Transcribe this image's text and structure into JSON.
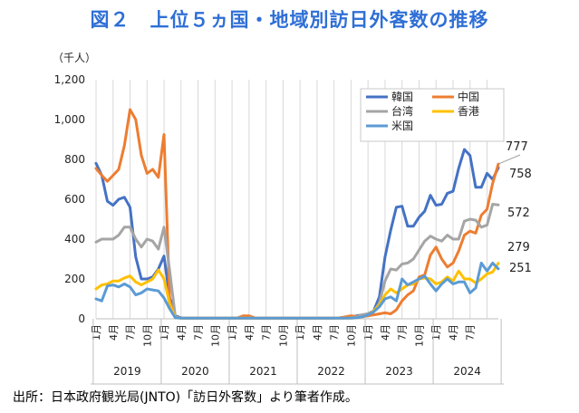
{
  "title": "図２　上位５ヵ国・地域別訪日外客数の推移",
  "source": "出所：日本政府観光局(JNTO)「訪日外客数」より筆者作成。",
  "chart_data": {
    "type": "line",
    "ylabel": "（千人）",
    "ylim": [
      0,
      1200
    ],
    "yticks": [
      "0",
      "200",
      "400",
      "600",
      "800",
      "1,000",
      "1,200"
    ],
    "ytick_values": [
      0,
      200,
      400,
      600,
      800,
      1000,
      1200
    ],
    "grid": "vertical",
    "legend_position": "top-right",
    "month_tick_labels": [
      "1月",
      "4月",
      "7月",
      "10月",
      "1月",
      "4月",
      "7月",
      "10月",
      "1月",
      "4月",
      "7月",
      "10月",
      "1月",
      "4月",
      "7月",
      "10月",
      "1月",
      "4月",
      "7月",
      "10月",
      "1月",
      "4月",
      "7月"
    ],
    "year_labels": [
      "2019",
      "2020",
      "2021",
      "2022",
      "2023",
      "2024"
    ],
    "x_start": "2019-01",
    "x_end": "2024-07",
    "end_labels": [
      {
        "text": "777",
        "series": "中国"
      },
      {
        "text": "758",
        "series": "韓国"
      },
      {
        "text": "572",
        "series": "台湾"
      },
      {
        "text": "279",
        "series": "香港"
      },
      {
        "text": "251",
        "series": "米国"
      }
    ],
    "series": [
      {
        "name": "韓国",
        "color": "#4472c4",
        "values": [
          780,
          720,
          590,
          570,
          600,
          610,
          560,
          310,
          200,
          200,
          210,
          250,
          315,
          105,
          15,
          5,
          3,
          3,
          3,
          3,
          3,
          3,
          3,
          3,
          3,
          3,
          3,
          3,
          3,
          3,
          3,
          3,
          3,
          3,
          3,
          3,
          3,
          3,
          3,
          3,
          3,
          3,
          3,
          5,
          8,
          10,
          15,
          20,
          25,
          40,
          110,
          310,
          445,
          560,
          565,
          465,
          465,
          510,
          540,
          620,
          570,
          575,
          630,
          640,
          755,
          850,
          820,
          660,
          660,
          730,
          700,
          758
        ]
      },
      {
        "name": "中国",
        "color": "#ed7d31",
        "values": [
          755,
          720,
          690,
          720,
          750,
          870,
          1050,
          1000,
          820,
          730,
          750,
          710,
          925,
          90,
          10,
          3,
          3,
          3,
          3,
          3,
          3,
          3,
          3,
          3,
          3,
          5,
          15,
          15,
          5,
          3,
          3,
          3,
          3,
          3,
          3,
          3,
          3,
          3,
          3,
          3,
          3,
          3,
          3,
          5,
          10,
          15,
          12,
          10,
          15,
          20,
          25,
          30,
          25,
          45,
          90,
          120,
          140,
          210,
          220,
          320,
          360,
          300,
          260,
          280,
          340,
          420,
          440,
          430,
          520,
          550,
          680,
          777
        ]
      },
      {
        "name": "台湾",
        "color": "#a5a5a5",
        "values": [
          385,
          400,
          400,
          400,
          420,
          460,
          460,
          400,
          360,
          400,
          390,
          350,
          460,
          240,
          10,
          3,
          3,
          3,
          3,
          3,
          3,
          3,
          3,
          3,
          3,
          3,
          3,
          3,
          3,
          3,
          3,
          3,
          3,
          3,
          3,
          3,
          3,
          3,
          3,
          3,
          3,
          3,
          3,
          3,
          3,
          5,
          10,
          20,
          25,
          35,
          80,
          190,
          250,
          245,
          275,
          280,
          300,
          345,
          390,
          415,
          400,
          390,
          420,
          400,
          400,
          490,
          500,
          495,
          460,
          470,
          575,
          572
        ]
      },
      {
        "name": "香港",
        "color": "#ffc000",
        "values": [
          150,
          170,
          175,
          190,
          190,
          205,
          215,
          185,
          170,
          185,
          200,
          245,
          200,
          75,
          5,
          3,
          3,
          3,
          3,
          3,
          3,
          3,
          3,
          3,
          3,
          3,
          3,
          3,
          3,
          3,
          3,
          3,
          3,
          3,
          3,
          3,
          3,
          3,
          3,
          3,
          3,
          3,
          3,
          3,
          3,
          3,
          5,
          10,
          20,
          40,
          70,
          120,
          150,
          130,
          150,
          170,
          175,
          200,
          205,
          200,
          175,
          185,
          210,
          190,
          240,
          200,
          200,
          180,
          200,
          225,
          235,
          279
        ]
      },
      {
        "name": "米国",
        "color": "#5b9bd5",
        "values": [
          100,
          90,
          165,
          170,
          160,
          175,
          160,
          120,
          130,
          150,
          145,
          140,
          105,
          50,
          5,
          3,
          3,
          3,
          3,
          3,
          3,
          3,
          3,
          3,
          3,
          3,
          3,
          3,
          3,
          3,
          3,
          3,
          3,
          3,
          3,
          3,
          3,
          3,
          3,
          3,
          3,
          3,
          3,
          3,
          3,
          3,
          5,
          10,
          20,
          35,
          60,
          100,
          110,
          90,
          200,
          170,
          185,
          200,
          215,
          175,
          140,
          175,
          200,
          175,
          185,
          185,
          130,
          155,
          280,
          240,
          280,
          251
        ]
      }
    ]
  }
}
